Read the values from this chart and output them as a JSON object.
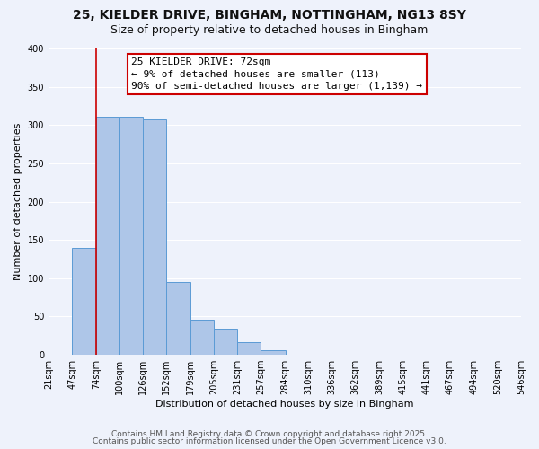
{
  "title": "25, KIELDER DRIVE, BINGHAM, NOTTINGHAM, NG13 8SY",
  "subtitle": "Size of property relative to detached houses in Bingham",
  "xlabel": "Distribution of detached houses by size in Bingham",
  "ylabel": "Number of detached properties",
  "bar_values": [
    0,
    140,
    311,
    311,
    307,
    95,
    46,
    34,
    17,
    6,
    0,
    0,
    0,
    0,
    0,
    0,
    0,
    0,
    0,
    0
  ],
  "bin_edges": [
    21,
    47,
    74,
    100,
    126,
    152,
    179,
    205,
    231,
    257,
    284,
    310,
    336,
    362,
    389,
    415,
    441,
    467,
    494,
    520,
    546
  ],
  "tick_labels": [
    "21sqm",
    "47sqm",
    "74sqm",
    "100sqm",
    "126sqm",
    "152sqm",
    "179sqm",
    "205sqm",
    "231sqm",
    "257sqm",
    "284sqm",
    "310sqm",
    "336sqm",
    "362sqm",
    "389sqm",
    "415sqm",
    "441sqm",
    "467sqm",
    "494sqm",
    "520sqm",
    "546sqm"
  ],
  "bar_color": "#aec6e8",
  "bar_edge_color": "#5b9bd5",
  "background_color": "#eef2fb",
  "grid_color": "#ffffff",
  "vline_x": 74,
  "vline_color": "#cc0000",
  "annotation_text": "25 KIELDER DRIVE: 72sqm\n← 9% of detached houses are smaller (113)\n90% of semi-detached houses are larger (1,139) →",
  "annotation_box_color": "#ffffff",
  "annotation_box_edge_color": "#cc0000",
  "ylim": [
    0,
    400
  ],
  "yticks": [
    0,
    50,
    100,
    150,
    200,
    250,
    300,
    350,
    400
  ],
  "footer1": "Contains HM Land Registry data © Crown copyright and database right 2025.",
  "footer2": "Contains public sector information licensed under the Open Government Licence v3.0.",
  "title_fontsize": 10,
  "subtitle_fontsize": 9,
  "axis_label_fontsize": 8,
  "tick_fontsize": 7,
  "annotation_fontsize": 8,
  "footer_fontsize": 6.5
}
